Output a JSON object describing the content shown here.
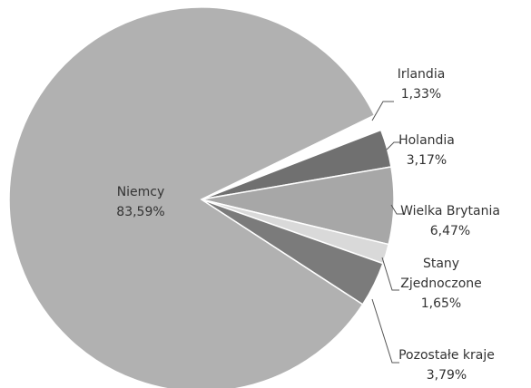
{
  "chart_data": {
    "type": "pie",
    "categories": [
      "Niemcy",
      "Irlandia",
      "Holandia",
      "Wielka Brytania",
      "Stany Zjednoczone",
      "Pozostałe kraje"
    ],
    "values": [
      83.59,
      1.33,
      3.17,
      6.47,
      1.65,
      3.79
    ],
    "value_labels": [
      "83,59%",
      "1,33%",
      "3,17%",
      "6,47%",
      "1,65%",
      "3,79%"
    ],
    "colors": [
      "#b1b1b1",
      "#ffffff",
      "#707070",
      "#a7a7a7",
      "#d9d9d9",
      "#7b7b7b"
    ]
  }
}
